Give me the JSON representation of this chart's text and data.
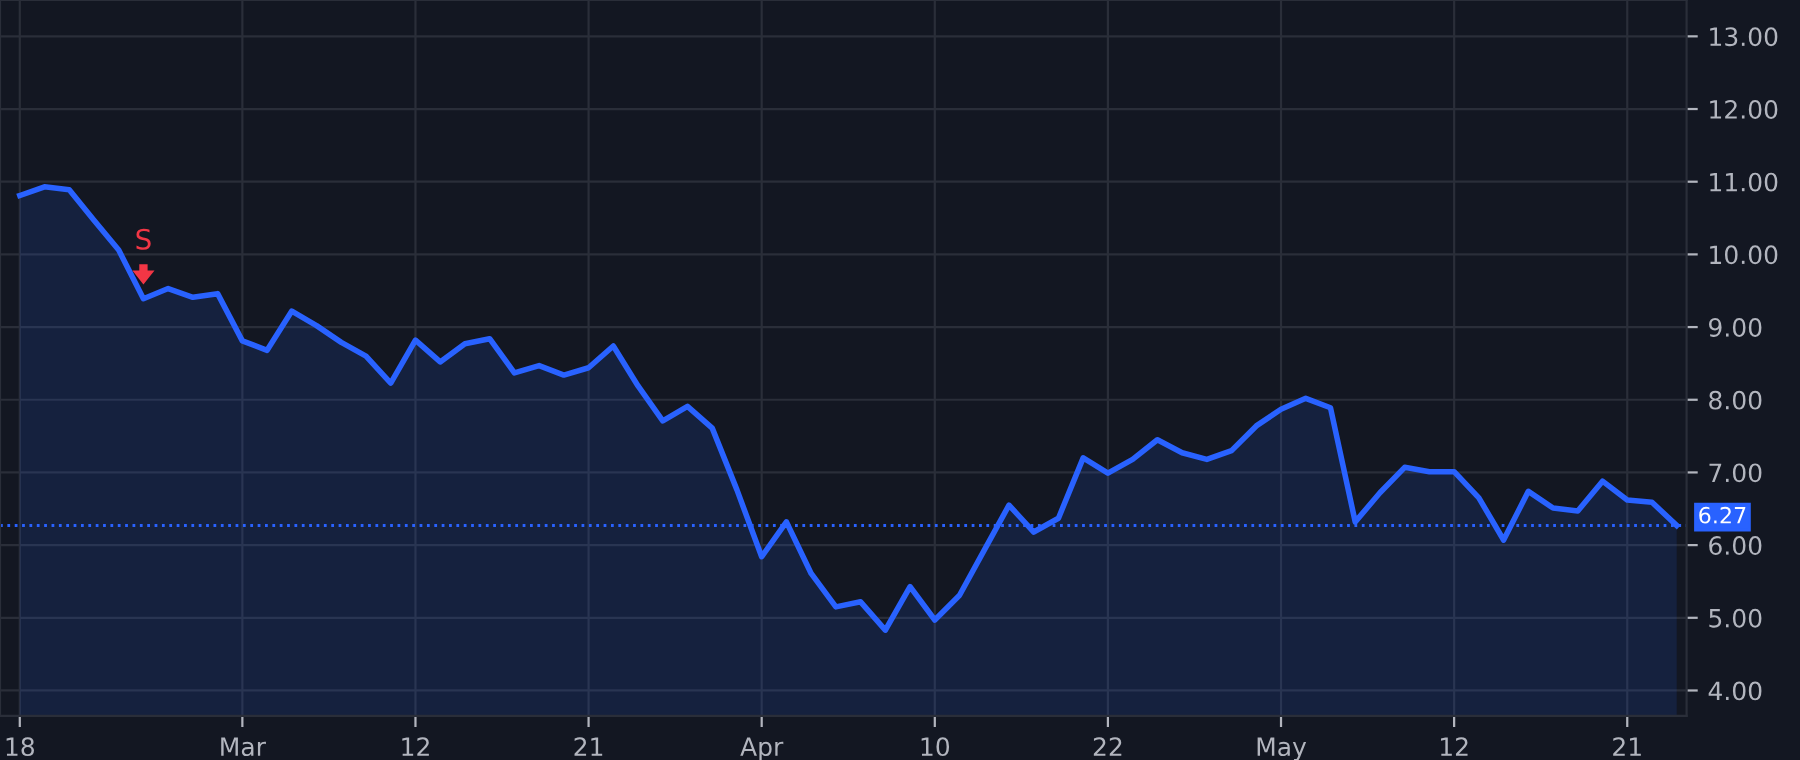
{
  "chart_data": {
    "type": "area",
    "categories": [
      "18",
      null,
      null,
      null,
      null,
      null,
      null,
      null,
      null,
      "Mar",
      null,
      null,
      null,
      null,
      null,
      null,
      "12",
      null,
      null,
      null,
      null,
      null,
      null,
      "21",
      null,
      null,
      null,
      null,
      null,
      null,
      "Apr",
      null,
      null,
      null,
      null,
      null,
      null,
      "10",
      null,
      null,
      null,
      null,
      null,
      null,
      "22",
      null,
      null,
      null,
      null,
      null,
      null,
      "May",
      null,
      null,
      null,
      null,
      null,
      null,
      "12",
      null,
      null,
      null,
      null,
      null,
      null,
      "21",
      null,
      null
    ],
    "series": [
      {
        "color": "#2962ff",
        "values": [
          10.81,
          10.93,
          10.89,
          10.47,
          10.06,
          9.39,
          9.53,
          9.41,
          9.46,
          8.81,
          8.68,
          9.22,
          9.02,
          8.79,
          8.6,
          8.23,
          8.82,
          8.52,
          8.77,
          8.84,
          8.37,
          8.47,
          8.34,
          8.44,
          8.74,
          8.19,
          7.71,
          7.91,
          7.61,
          6.76,
          5.84,
          6.32,
          5.61,
          5.15,
          5.22,
          4.83,
          5.43,
          4.97,
          5.31,
          5.93,
          6.55,
          6.18,
          6.37,
          7.2,
          6.99,
          7.18,
          7.45,
          7.27,
          7.18,
          7.3,
          7.64,
          7.87,
          8.02,
          7.89,
          6.32,
          6.72,
          7.07,
          7.01,
          7.01,
          6.65,
          6.07,
          6.74,
          6.51,
          6.47,
          6.88,
          6.62,
          6.59,
          6.27
        ]
      }
    ],
    "ylim": [
      3.65,
      13.5
    ],
    "yticks": [
      {
        "value": 4,
        "label": "4.00"
      },
      {
        "value": 5,
        "label": "5.00"
      },
      {
        "value": 6,
        "label": "6.00"
      },
      {
        "value": 7,
        "label": "7.00"
      },
      {
        "value": 8,
        "label": "8.00"
      },
      {
        "value": 9,
        "label": "9.00"
      },
      {
        "value": 10,
        "label": "10.00"
      },
      {
        "value": 11,
        "label": "11.00"
      },
      {
        "value": 12,
        "label": "12.00"
      },
      {
        "value": 13,
        "label": "13.00"
      }
    ],
    "ref_lines": [
      {
        "axis": "y",
        "value": 6.27,
        "label": "6.27",
        "color": "#2962ff",
        "line_style": "dotted"
      }
    ],
    "annotations": [
      {
        "text": "S",
        "y": 9.39
      }
    ],
    "grid": true,
    "legend": false,
    "marker": "none",
    "line_style": "solid"
  }
}
